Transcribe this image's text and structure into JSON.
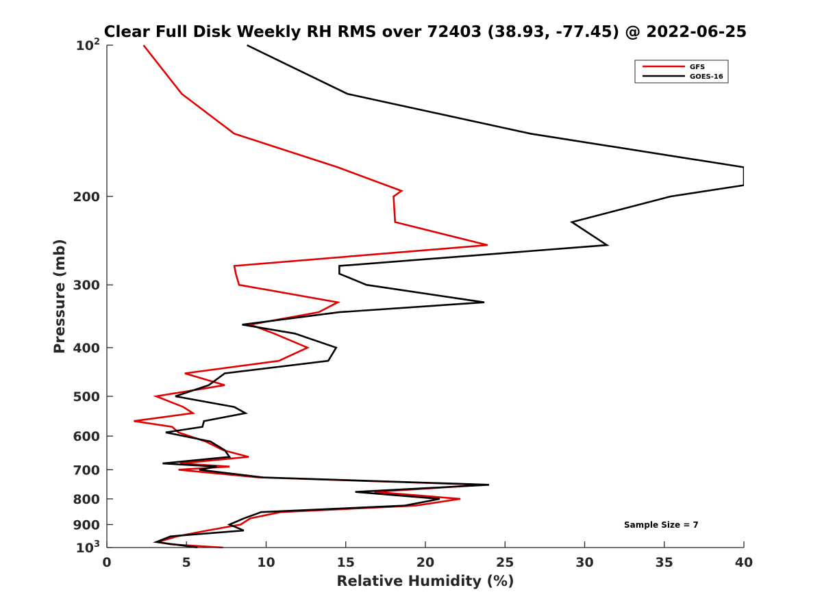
{
  "chart_data": {
    "type": "line",
    "title": "Clear Full Disk Weekly RH RMS over 72403 (38.93, -77.45) @ 2022-06-25",
    "xlabel": "Relative Humidity (%)",
    "ylabel": "Pressure (mb)",
    "xlim": [
      0,
      40
    ],
    "ylim": [
      100,
      1000
    ],
    "y_scale": "log",
    "y_reversed": true,
    "grid": false,
    "legend_position": "top-right",
    "x_ticks": [
      "0",
      "5",
      "10",
      "15",
      "20",
      "25",
      "30",
      "35",
      "40"
    ],
    "y_ticks": [
      {
        "value": 100,
        "base": "10",
        "exp": "2"
      },
      {
        "value": 200,
        "label": "200"
      },
      {
        "value": 300,
        "label": "300"
      },
      {
        "value": 400,
        "label": "400"
      },
      {
        "value": 500,
        "label": "500"
      },
      {
        "value": 600,
        "label": "600"
      },
      {
        "value": 700,
        "label": "700"
      },
      {
        "value": 800,
        "label": "800"
      },
      {
        "value": 900,
        "label": "900"
      },
      {
        "value": 1000,
        "base": "10",
        "exp": "3"
      }
    ],
    "annotation": "Sample Size = 7",
    "series": [
      {
        "name": "GFS",
        "color": "#e00000",
        "points": [
          [
            2.3,
            100
          ],
          [
            4.7,
            125
          ],
          [
            8.0,
            150
          ],
          [
            14.5,
            175
          ],
          [
            18.5,
            195
          ],
          [
            18.0,
            200
          ],
          [
            18.1,
            225
          ],
          [
            23.9,
            250
          ],
          [
            8.0,
            275
          ],
          [
            8.1,
            285
          ],
          [
            8.3,
            300
          ],
          [
            14.5,
            325
          ],
          [
            13.3,
            340
          ],
          [
            9.0,
            360
          ],
          [
            10.5,
            375
          ],
          [
            12.6,
            400
          ],
          [
            10.8,
            425
          ],
          [
            4.9,
            450
          ],
          [
            7.4,
            475
          ],
          [
            3.1,
            500
          ],
          [
            4.8,
            525
          ],
          [
            5.4,
            540
          ],
          [
            1.7,
            560
          ],
          [
            4.1,
            575
          ],
          [
            4.5,
            590
          ],
          [
            6.2,
            615
          ],
          [
            7.3,
            640
          ],
          [
            8.9,
            660
          ],
          [
            4.6,
            680
          ],
          [
            7.7,
            690
          ],
          [
            4.5,
            700
          ],
          [
            9.5,
            725
          ],
          [
            23.7,
            750
          ],
          [
            16.8,
            775
          ],
          [
            22.2,
            800
          ],
          [
            19.4,
            825
          ],
          [
            10.9,
            850
          ],
          [
            9.0,
            875
          ],
          [
            8.4,
            900
          ],
          [
            6.3,
            925
          ],
          [
            4.4,
            950
          ],
          [
            3.2,
            975
          ],
          [
            4.0,
            985
          ],
          [
            7.3,
            1000
          ]
        ]
      },
      {
        "name": "GOES-16",
        "color": "#000000",
        "points": [
          [
            8.8,
            100
          ],
          [
            15.1,
            125
          ],
          [
            26.6,
            150
          ],
          [
            40.0,
            175
          ],
          [
            40.0,
            190
          ],
          [
            35.4,
            200
          ],
          [
            29.2,
            225
          ],
          [
            31.4,
            250
          ],
          [
            14.6,
            275
          ],
          [
            14.6,
            285
          ],
          [
            16.3,
            300
          ],
          [
            23.7,
            325
          ],
          [
            14.6,
            340
          ],
          [
            8.5,
            360
          ],
          [
            11.8,
            375
          ],
          [
            14.4,
            400
          ],
          [
            13.9,
            425
          ],
          [
            7.4,
            450
          ],
          [
            6.4,
            475
          ],
          [
            4.3,
            500
          ],
          [
            8.0,
            525
          ],
          [
            8.7,
            540
          ],
          [
            6.1,
            560
          ],
          [
            6.0,
            575
          ],
          [
            3.7,
            590
          ],
          [
            6.5,
            615
          ],
          [
            7.4,
            640
          ],
          [
            7.7,
            660
          ],
          [
            3.5,
            680
          ],
          [
            6.9,
            690
          ],
          [
            5.8,
            700
          ],
          [
            9.8,
            725
          ],
          [
            24.0,
            750
          ],
          [
            15.6,
            775
          ],
          [
            20.9,
            800
          ],
          [
            18.7,
            825
          ],
          [
            9.7,
            850
          ],
          [
            8.6,
            875
          ],
          [
            7.7,
            900
          ],
          [
            8.6,
            925
          ],
          [
            4.0,
            950
          ],
          [
            3.1,
            975
          ],
          [
            5.7,
            1000
          ]
        ]
      }
    ]
  }
}
